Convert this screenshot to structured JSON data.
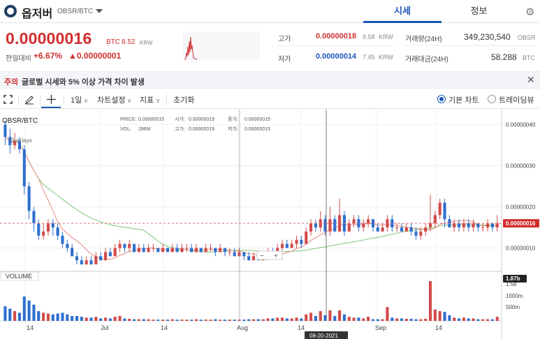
{
  "header": {
    "coin_name": "옵저버",
    "pair": "OBSR/BTC",
    "tabs": [
      "시세",
      "정보"
    ],
    "settings_icon": "gear-icon"
  },
  "price": {
    "value": "0.00000016",
    "unit": "BTC",
    "krw": "8.52",
    "krw_unit": "KRW",
    "compare_label": "전일대비",
    "change_pct": "+6.67%",
    "change_abs": "▲0.00000001"
  },
  "stats": {
    "high_label": "고가",
    "high_value": "0.00000018",
    "high_krw": "9.58",
    "high_krw_unit": "KRW",
    "low_label": "저가",
    "low_value": "0.00000014",
    "low_krw": "7.45",
    "low_krw_unit": "KRW",
    "volume_label": "거래량(24H)",
    "volume_value": "349,230,540",
    "volume_unit": "OBSR",
    "amount_label": "거래대금(24H)",
    "amount_value": "58.288",
    "amount_unit": "BTC"
  },
  "notice": {
    "tag": "주의",
    "message": "글로벌 시세와 5% 이상 가격 차이 발생",
    "close_icon": "close-icon"
  },
  "toolbar": {
    "interval": "1일",
    "chart_settings": "차트설정",
    "indicators": "지표",
    "reset": "초기화",
    "basic_chart": "기본 차트",
    "tradingview": "트레이딩뷰",
    "selected_chart": "기본 차트"
  },
  "chart_data": {
    "type": "candlestick",
    "symbol": "OBSR/BTC",
    "overlays_label": "Overlays",
    "volume_label": "VOLUME",
    "crosshair_date": "08-20-2021",
    "x_ticks": [
      "14",
      "Jul",
      "14",
      "Aug",
      "14",
      "Sep",
      "14"
    ],
    "y_ticks": [
      "0.00000040",
      "0.00000030",
      "0.00000020",
      "0.00000010"
    ],
    "y_range": [
      5e-08,
      4.3e-07
    ],
    "current_price_label": "0.00000016",
    "current_price": 1.6e-07,
    "volume_ticks": [
      "1.5b",
      "1000m",
      "500m"
    ],
    "volume_current_label": "1.87b",
    "legend": {
      "price_label": "PRICE:",
      "price": "0.00000015",
      "open_label": "시가:",
      "open": "0.00000019",
      "close_label": "종가:",
      "close": "0.00000015",
      "vol_label": "VOL:",
      "vol": "286M",
      "high_label": "고가:",
      "high": "0.00000019",
      "low_label": "저가:",
      "low": "0.00000015"
    },
    "candles": [
      [
        4e-07,
        3.7e-07,
        4.1e-07,
        3.5e-07,
        180
      ],
      [
        3.7e-07,
        3.5e-07,
        3.9e-07,
        3.3e-07,
        150
      ],
      [
        3.5e-07,
        3.6e-07,
        3.8e-07,
        3.4e-07,
        120
      ],
      [
        3.6e-07,
        3.4e-07,
        3.7e-07,
        3.3e-07,
        100
      ],
      [
        3.4e-07,
        2.5e-07,
        3.5e-07,
        2.3e-07,
        300
      ],
      [
        2.5e-07,
        1.9e-07,
        2.6e-07,
        1.7e-07,
        250
      ],
      [
        1.9e-07,
        1.6e-07,
        2e-07,
        1.4e-07,
        200
      ],
      [
        1.6e-07,
        1.3e-07,
        1.7e-07,
        1.2e-07,
        120
      ],
      [
        1.3e-07,
        1.4e-07,
        1.6e-07,
        1.2e-07,
        100
      ],
      [
        1.4e-07,
        1.6e-07,
        1.7e-07,
        1.3e-07,
        90
      ],
      [
        1.6e-07,
        1.5e-07,
        1.7e-07,
        1.3e-07,
        80
      ],
      [
        1.5e-07,
        1.3e-07,
        1.6e-07,
        1.2e-07,
        90
      ],
      [
        1.3e-07,
        1.1e-07,
        1.4e-07,
        1e-07,
        100
      ],
      [
        1.1e-07,
        1e-07,
        1.2e-07,
        9e-08,
        80
      ],
      [
        1e-07,
        8e-08,
        1.1e-07,
        8e-08,
        60
      ],
      [
        8e-08,
        7e-08,
        9e-08,
        6e-08,
        60
      ],
      [
        7e-08,
        6e-08,
        8e-08,
        6e-08,
        50
      ],
      [
        6e-08,
        7e-08,
        8e-08,
        6e-08,
        40
      ],
      [
        7e-08,
        6e-08,
        8e-08,
        6e-08,
        40
      ],
      [
        6e-08,
        8e-08,
        9e-08,
        6e-08,
        50
      ],
      [
        8e-08,
        7e-08,
        9e-08,
        7e-08,
        30
      ],
      [
        7e-08,
        9e-08,
        1e-07,
        7e-08,
        40
      ],
      [
        9e-08,
        8e-08,
        1e-07,
        8e-08,
        30
      ],
      [
        8e-08,
        1e-07,
        1.1e-07,
        8e-08,
        50
      ],
      [
        1e-07,
        1.1e-07,
        1.2e-07,
        9e-08,
        60
      ],
      [
        1.1e-07,
        1e-07,
        1.1e-07,
        9e-08,
        30
      ],
      [
        1e-07,
        1.1e-07,
        1.2e-07,
        9e-08,
        25
      ],
      [
        1.1e-07,
        9e-08,
        1.1e-07,
        9e-08,
        20
      ],
      [
        9e-08,
        1e-07,
        1.1e-07,
        9e-08,
        20
      ],
      [
        1e-07,
        9e-08,
        1.1e-07,
        9e-08,
        20
      ],
      [
        9e-08,
        1e-07,
        1.1e-07,
        9e-08,
        20
      ],
      [
        1e-07,
        1e-07,
        1.1e-07,
        9e-08,
        15
      ],
      [
        1e-07,
        9e-08,
        1e-07,
        9e-08,
        15
      ],
      [
        9e-08,
        1e-07,
        1.1e-07,
        9e-08,
        15
      ],
      [
        1e-07,
        9e-08,
        1e-07,
        9e-08,
        15
      ],
      [
        9e-08,
        1e-07,
        1.1e-07,
        9e-08,
        20
      ],
      [
        1e-07,
        9e-08,
        1.1e-07,
        9e-08,
        15
      ],
      [
        9e-08,
        1e-07,
        1.1e-07,
        9e-08,
        15
      ],
      [
        1e-07,
        1e-07,
        1.1e-07,
        9e-08,
        15
      ],
      [
        1e-07,
        9e-08,
        1.1e-07,
        9e-08,
        15
      ],
      [
        9e-08,
        1e-07,
        1.1e-07,
        9e-08,
        20
      ],
      [
        1e-07,
        9e-08,
        1e-07,
        9e-08,
        15
      ],
      [
        9e-08,
        1e-07,
        1.1e-07,
        9e-08,
        15
      ],
      [
        1e-07,
        1e-07,
        1.1e-07,
        9e-08,
        15
      ],
      [
        1e-07,
        9e-08,
        1e-07,
        8e-08,
        20
      ],
      [
        9e-08,
        1e-07,
        1.1e-07,
        9e-08,
        15
      ],
      [
        1e-07,
        9e-08,
        1e-07,
        8e-08,
        15
      ],
      [
        9e-08,
        9e-08,
        1e-07,
        8e-08,
        15
      ],
      [
        9e-08,
        8e-08,
        1e-07,
        8e-08,
        15
      ],
      [
        8e-08,
        9e-08,
        1e-07,
        8e-08,
        15
      ],
      [
        9e-08,
        8e-08,
        9e-08,
        7e-08,
        15
      ],
      [
        8e-08,
        7e-08,
        9e-08,
        7e-08,
        20
      ],
      [
        7e-08,
        8e-08,
        9e-08,
        7e-08,
        20
      ],
      [
        8e-08,
        7e-08,
        9e-08,
        7e-08,
        20
      ],
      [
        7e-08,
        8e-08,
        9e-08,
        7e-08,
        20
      ],
      [
        8e-08,
        9e-08,
        1e-07,
        7e-08,
        30
      ],
      [
        9e-08,
        8e-08,
        1e-07,
        8e-08,
        30
      ],
      [
        8e-08,
        1e-07,
        1.1e-07,
        8e-08,
        40
      ],
      [
        1e-07,
        1.1e-07,
        1.2e-07,
        9e-08,
        40
      ],
      [
        1.1e-07,
        1e-07,
        1.2e-07,
        1e-07,
        30
      ],
      [
        1e-07,
        1.1e-07,
        1.2e-07,
        1e-07,
        30
      ],
      [
        1.1e-07,
        1.2e-07,
        1.3e-07,
        1e-07,
        40
      ],
      [
        1.2e-07,
        1.1e-07,
        1.3e-07,
        1e-07,
        30
      ],
      [
        1.1e-07,
        1.4e-07,
        1.5e-07,
        1.1e-07,
        80
      ],
      [
        1.4e-07,
        1.6e-07,
        1.7e-07,
        1.3e-07,
        100
      ],
      [
        1.6e-07,
        1.5e-07,
        1.7e-07,
        1.4e-07,
        60
      ],
      [
        1.5e-07,
        1.7e-07,
        1.9e-07,
        1.4e-07,
        120
      ],
      [
        1.7e-07,
        1.4e-07,
        1.8e-07,
        1.3e-07,
        70
      ],
      [
        1.4e-07,
        1.7e-07,
        2e-07,
        1.3e-07,
        130
      ],
      [
        1.7e-07,
        1.4e-07,
        1.8e-07,
        1.4e-07,
        60
      ],
      [
        1.4e-07,
        1.8e-07,
        2.2e-07,
        1.4e-07,
        130
      ],
      [
        1.8e-07,
        1.4e-07,
        1.9e-07,
        1.3e-07,
        80
      ],
      [
        1.4e-07,
        1.6e-07,
        1.7e-07,
        1.4e-07,
        50
      ],
      [
        1.6e-07,
        1.7e-07,
        1.8e-07,
        1.5e-07,
        40
      ],
      [
        1.7e-07,
        1.5e-07,
        1.8e-07,
        1.4e-07,
        40
      ],
      [
        1.5e-07,
        1.6e-07,
        1.7e-07,
        1.4e-07,
        30
      ],
      [
        1.6e-07,
        1.7e-07,
        1.8e-07,
        1.5e-07,
        50
      ],
      [
        1.7e-07,
        1.5e-07,
        1.7e-07,
        1.4e-07,
        20
      ],
      [
        1.5e-07,
        1.4e-07,
        1.6e-07,
        1.4e-07,
        20
      ],
      [
        1.4e-07,
        1.5e-07,
        1.6e-07,
        1.4e-07,
        20
      ],
      [
        1.5e-07,
        1.7e-07,
        1.8e-07,
        1.4e-07,
        170
      ],
      [
        1.7e-07,
        1.5e-07,
        1.8e-07,
        1.4e-07,
        40
      ],
      [
        1.5e-07,
        1.5e-07,
        1.6e-07,
        1.4e-07,
        30
      ],
      [
        1.5e-07,
        1.4e-07,
        1.6e-07,
        1.4e-07,
        30
      ],
      [
        1.4e-07,
        1.5e-07,
        1.6e-07,
        1.4e-07,
        25
      ],
      [
        1.5e-07,
        1.4e-07,
        1.6e-07,
        1.3e-07,
        25
      ],
      [
        1.4e-07,
        1.3e-07,
        1.5e-07,
        1.2e-07,
        20
      ],
      [
        1.3e-07,
        1.4e-07,
        1.5e-07,
        1.2e-07,
        20
      ],
      [
        1.4e-07,
        1.5e-07,
        1.6e-07,
        1.3e-07,
        25
      ],
      [
        1.5e-07,
        1.6e-07,
        2.3e-07,
        1.4e-07,
        490
      ],
      [
        1.6e-07,
        1.8e-07,
        1.9e-07,
        1.5e-07,
        140
      ],
      [
        1.8e-07,
        2.1e-07,
        2.2e-07,
        1.7e-07,
        120
      ],
      [
        2.1e-07,
        1.7e-07,
        2.2e-07,
        1.5e-07,
        110
      ],
      [
        1.7e-07,
        1.5e-07,
        1.8e-07,
        1.5e-07,
        70
      ],
      [
        1.5e-07,
        1.6e-07,
        1.7e-07,
        1.4e-07,
        40
      ],
      [
        1.6e-07,
        1.5e-07,
        1.7e-07,
        1.4e-07,
        30
      ],
      [
        1.5e-07,
        1.6e-07,
        1.7e-07,
        1.4e-07,
        40
      ],
      [
        1.6e-07,
        1.5e-07,
        1.7e-07,
        1.4e-07,
        30
      ],
      [
        1.5e-07,
        1.6e-07,
        1.7e-07,
        1.4e-07,
        30
      ],
      [
        1.6e-07,
        1.5e-07,
        1.6e-07,
        1.4e-07,
        20
      ],
      [
        1.5e-07,
        1.5e-07,
        1.6e-07,
        1.4e-07,
        20
      ],
      [
        1.5e-07,
        1.6e-07,
        1.7e-07,
        1.4e-07,
        20
      ],
      [
        1.6e-07,
        1.5e-07,
        1.6e-07,
        1.4e-07,
        20
      ],
      [
        1.5e-07,
        1.6e-07,
        1.8e-07,
        1.4e-07,
        50
      ]
    ]
  }
}
